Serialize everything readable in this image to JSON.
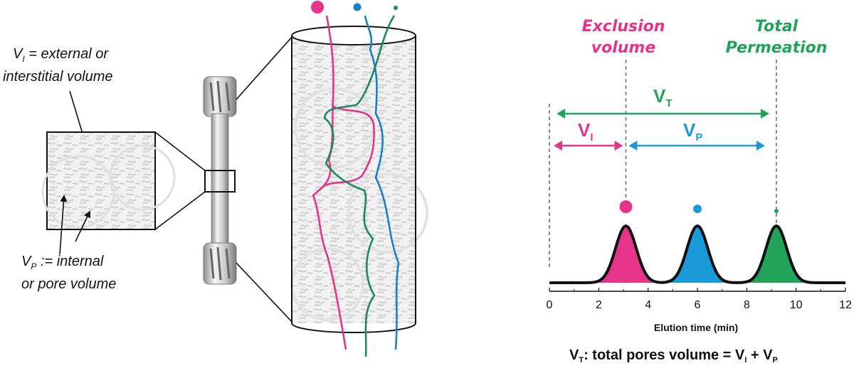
{
  "schematic": {
    "vi_label": {
      "symbol": "V",
      "sub": "I",
      "line1_rest": " = external or",
      "line2": "interstitial volume"
    },
    "vp_label": {
      "symbol": "V",
      "sub": "P",
      "line1_rest": " := internal",
      "line2": "or pore volume"
    }
  },
  "chart": {
    "exclusion_label": [
      "Exclusion",
      "volume"
    ],
    "permeation_label": [
      "Total",
      "Permeation"
    ],
    "vt": {
      "symbol": "V",
      "sub": "T"
    },
    "vi": {
      "symbol": "V",
      "sub": "I"
    },
    "vp": {
      "symbol": "V",
      "sub": "P"
    },
    "xlabel": "Elution time (min)",
    "formula": {
      "a": "V",
      "a_sub": "T",
      "b": ": total pores volume = V",
      "b_sub": "I",
      "c": " + V",
      "c_sub": "P"
    }
  },
  "colors": {
    "pink": "#e6348a",
    "blue": "#1a9ad9",
    "green": "#22a35a"
  },
  "chart_data": {
    "type": "line",
    "x_ticks": [
      0,
      2,
      4,
      6,
      8,
      10,
      12
    ],
    "xlim": [
      0,
      12
    ],
    "peaks": [
      {
        "center": 3.1,
        "color": "pink"
      },
      {
        "center": 6.0,
        "color": "blue"
      },
      {
        "center": 9.2,
        "color": "green"
      }
    ],
    "markers": {
      "t0": 0,
      "exclusion": 3.1,
      "permeation": 9.2
    }
  }
}
